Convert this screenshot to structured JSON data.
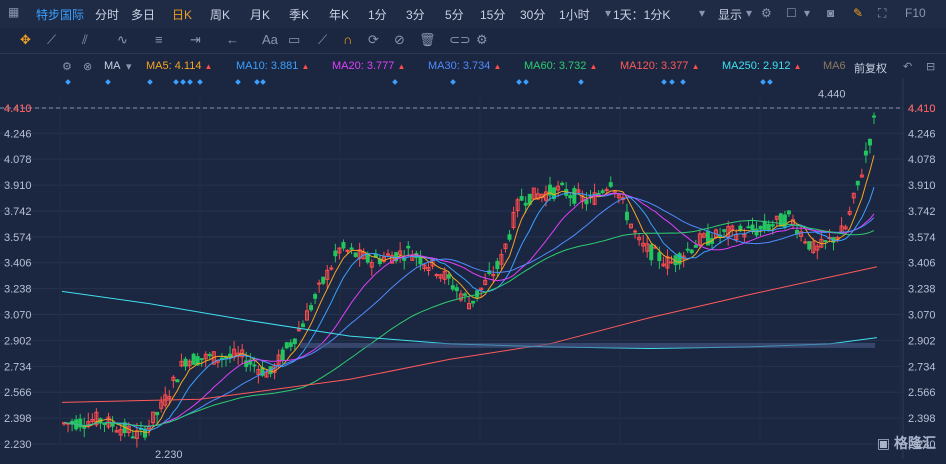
{
  "topbar": {
    "app_icon": "grid-icon",
    "source": "特步国际",
    "periods": [
      "分时",
      "多日",
      "日K",
      "周K",
      "月K",
      "季K",
      "年K",
      "1分",
      "3分",
      "5分",
      "15分",
      "30分",
      "1小时",
      "1天：1分K"
    ],
    "active_period": "日K",
    "display": "显示",
    "f10": "F10"
  },
  "mabar": {
    "type": "MA",
    "items": [
      {
        "label": "MA5: 4.114",
        "color": "#f5a623"
      },
      {
        "label": "MA10: 3.881",
        "color": "#3aa0ff"
      },
      {
        "label": "MA20: 3.777",
        "color": "#e040fb"
      },
      {
        "label": "MA30: 3.734",
        "color": "#4f8cff"
      },
      {
        "label": "MA60: 3.732",
        "color": "#2ecc71"
      },
      {
        "label": "MA120: 3.377",
        "color": "#ff5a5a"
      },
      {
        "label": "MA250: 2.912",
        "color": "#3fe0f0"
      },
      {
        "label": "MA6",
        "color": "#8c7a60"
      }
    ],
    "adjust": "前复权"
  },
  "chart_data": {
    "type": "candlestick",
    "y_ticks": [
      "4.410",
      "4.246",
      "4.078",
      "3.910",
      "3.742",
      "3.574",
      "3.406",
      "3.238",
      "3.070",
      "2.902",
      "2.734",
      "2.566",
      "2.398",
      "2.230"
    ],
    "ylim": [
      2.23,
      4.41
    ],
    "last_price": "4.410",
    "high_label": "4.440",
    "low_label": "2.230",
    "colors": {
      "up": "#ff4d4d",
      "down": "#22c55e"
    }
  },
  "brand": "格隆汇"
}
